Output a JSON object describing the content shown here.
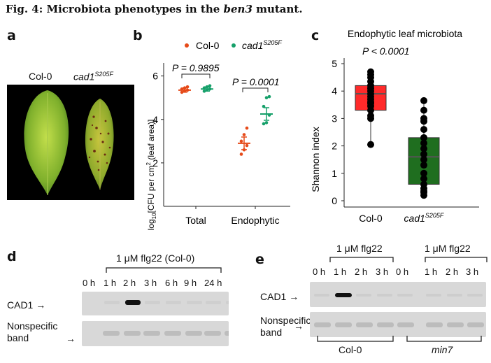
{
  "figure": {
    "title_prefix": "Fig. 4: Microbiota phenotypes in the ",
    "title_gene": "ben3",
    "title_suffix": " mutant."
  },
  "panel_a": {
    "letter": "a",
    "labels": [
      "Col-0",
      "cad1",
      "S205F"
    ]
  },
  "panel_b": {
    "letter": "b",
    "legend": {
      "col0": "Col-0",
      "cad1": "cad1",
      "cad1_sup": "S205F",
      "col0_color": "#e64a19",
      "cad1_color": "#16a06a"
    },
    "ylabel_pre": "log",
    "ylabel_sub": "10",
    "ylabel_mid": "[CFU per cm",
    "ylabel_sup": "2",
    "ylabel_post": " (leaf area)]",
    "pvalues": [
      "P = 0.9895",
      "P = 0.0001"
    ],
    "yticks": [
      "2",
      "4",
      "6"
    ],
    "xticks": [
      "Total",
      "Endophytic"
    ],
    "chart_data": {
      "type": "scatter",
      "categories": [
        "Total",
        "Endophytic"
      ],
      "ylim": [
        0,
        6.6
      ],
      "series": [
        {
          "name": "Col-0",
          "means": [
            5.35,
            2.9
          ],
          "points": [
            [
              5.25,
              5.3,
              5.35,
              5.4,
              5.45,
              5.5
            ],
            [
              2.4,
              2.6,
              2.8,
              3.0,
              3.3,
              3.6
            ]
          ]
        },
        {
          "name": "cad1 S205F",
          "means": [
            5.4,
            4.25
          ],
          "points": [
            [
              5.3,
              5.35,
              5.4,
              5.45,
              5.5,
              5.55
            ],
            [
              3.8,
              3.85,
              4.2,
              4.6,
              5.0,
              5.05
            ]
          ]
        }
      ]
    }
  },
  "panel_c": {
    "letter": "c",
    "title": "Endophytic leaf microbiota",
    "pvalue": "P < 0.0001",
    "ylabel": "Shannon index",
    "yticks": [
      "0",
      "1",
      "2",
      "3",
      "4",
      "5"
    ],
    "xticks": [
      "Col-0",
      "cad1",
      "S205F"
    ],
    "colors": {
      "col0": "#ff2a2a",
      "cad1": "#1f6e1f"
    },
    "chart_data": {
      "type": "box",
      "categories": [
        "Col-0",
        "cad1 S205F"
      ],
      "ylim": [
        0,
        5
      ],
      "boxes": [
        {
          "q1": 3.3,
          "median": 3.9,
          "q3": 4.2,
          "whisker_low": 2.05,
          "whisker_high": 4.7,
          "points": [
            2.05,
            3.0,
            3.1,
            3.3,
            3.45,
            3.55,
            3.6,
            3.7,
            3.8,
            3.9,
            4.0,
            4.1,
            4.2,
            4.35,
            4.5,
            4.6,
            4.7
          ]
        },
        {
          "q1": 0.6,
          "median": 1.6,
          "q3": 2.3,
          "whisker_low": 0.2,
          "whisker_high": 3.65,
          "points": [
            0.2,
            0.3,
            0.35,
            0.45,
            0.6,
            0.8,
            1.0,
            1.3,
            1.5,
            1.7,
            1.9,
            2.1,
            2.3,
            2.6,
            2.9,
            3.0,
            3.3,
            3.65
          ]
        }
      ]
    }
  },
  "panel_d": {
    "letter": "d",
    "treatment": "1 μM flg22 (Col-0)",
    "timepoints": [
      "0 h",
      "1 h",
      "2 h",
      "3 h",
      "6 h",
      "9 h",
      "24 h"
    ],
    "row1": "CAD1",
    "row2_line1": "Nonspecific",
    "row2_line2": "band",
    "band_intensity": [
      0,
      1,
      0,
      0,
      0,
      0,
      0
    ]
  },
  "panel_e": {
    "letter": "e",
    "treatment1": "1 μM flg22",
    "treatment2": "1 μM flg22",
    "timepoints": [
      "0 h",
      "1 h",
      "2 h",
      "3 h",
      "0 h",
      "1 h",
      "2 h",
      "3 h"
    ],
    "row1": "CAD1",
    "row2_line1": "Nonspecific",
    "row2_line2": "band",
    "genotype1": "Col-0",
    "genotype2": "min7",
    "band_intensity": [
      0,
      1,
      0,
      0,
      0,
      0,
      0,
      0
    ]
  }
}
